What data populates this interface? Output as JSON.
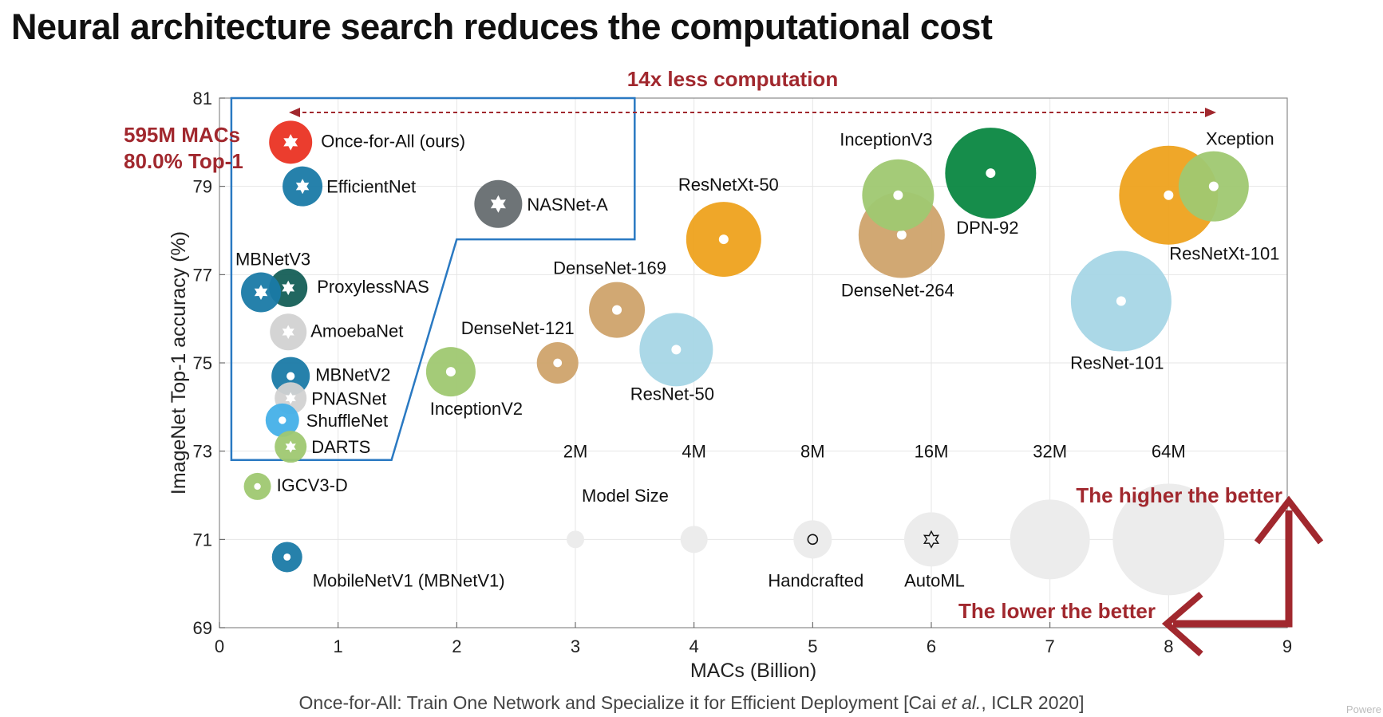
{
  "title": "Neural architecture search reduces the computational cost",
  "caption": {
    "before": "Once-for-All: Train One Network and Specialize it for Efficient Deployment [Cai ",
    "italic": "et al.",
    "after": ", ICLR 2020]"
  },
  "watermark": "Powere",
  "colors": {
    "red": "#a1282e",
    "ofa": "#ea3323",
    "blue": "#1a7aa6",
    "darkgreen": "#155f57",
    "gray": "#666d70",
    "lightgray": "#d2d2d2",
    "skyblue": "#45b0e8",
    "green": "#9fc871",
    "orange": "#eea21d",
    "tan": "#cfa36c",
    "lightblue": "#a7d6e6",
    "dpn": "#0a8741",
    "boxline": "#2a79c2"
  },
  "chart_data": {
    "type": "scatter",
    "xlabel": "MACs (Billion)",
    "ylabel": "ImageNet Top-1 accuracy (%)",
    "xlim": [
      0,
      9
    ],
    "ylim": [
      69,
      81
    ],
    "xticks": [
      0,
      1,
      2,
      3,
      4,
      5,
      6,
      7,
      8,
      9
    ],
    "yticks": [
      69,
      71,
      73,
      75,
      77,
      79,
      81
    ],
    "grid": true,
    "points": [
      {
        "name": "Once-for-All (ours)",
        "x": 0.6,
        "y": 80.0,
        "r": 27,
        "color": "#ea3323",
        "marker": "star",
        "label_dx": 38,
        "label_dy": 6,
        "anchor": "start"
      },
      {
        "name": "EfficientNet",
        "x": 0.7,
        "y": 79.0,
        "r": 25,
        "color": "#1a7aa6",
        "marker": "star",
        "label_dx": 30,
        "label_dy": 8,
        "anchor": "start"
      },
      {
        "name": "NASNet-A",
        "x": 2.35,
        "y": 78.6,
        "r": 30,
        "color": "#666d70",
        "marker": "star",
        "label_dx": 36,
        "label_dy": 8,
        "anchor": "start"
      },
      {
        "name": "ProxylessNAS",
        "x": 0.58,
        "y": 76.7,
        "r": 24,
        "color": "#155f57",
        "marker": "star",
        "label_dx": 36,
        "label_dy": 6,
        "anchor": "start"
      },
      {
        "name": "MBNetV3",
        "x": 0.35,
        "y": 76.6,
        "r": 25,
        "color": "#1a7aa6",
        "marker": "star",
        "label_dx": 15,
        "label_dy": -34,
        "anchor": "middle"
      },
      {
        "name": "AmoebaNet",
        "x": 0.58,
        "y": 75.7,
        "r": 23,
        "color": "#d2d2d2",
        "marker": "star",
        "label_dx": 28,
        "label_dy": 6,
        "anchor": "start"
      },
      {
        "name": "MBNetV2",
        "x": 0.6,
        "y": 74.7,
        "r": 24,
        "color": "#1a7aa6",
        "marker": "dot",
        "label_dx": 31,
        "label_dy": 6,
        "anchor": "start"
      },
      {
        "name": "PNASNet",
        "x": 0.6,
        "y": 74.2,
        "r": 20,
        "color": "#d2d2d2",
        "marker": "star",
        "label_dx": 26,
        "label_dy": 8,
        "anchor": "start"
      },
      {
        "name": "ShuffleNet",
        "x": 0.53,
        "y": 73.7,
        "r": 21,
        "color": "#45b0e8",
        "marker": "dot",
        "label_dx": 30,
        "label_dy": 8,
        "anchor": "start"
      },
      {
        "name": "DARTS",
        "x": 0.6,
        "y": 73.1,
        "r": 20,
        "color": "#9fc871",
        "marker": "star",
        "label_dx": 26,
        "label_dy": 8,
        "anchor": "start"
      },
      {
        "name": "IGCV3-D",
        "x": 0.32,
        "y": 72.2,
        "r": 17,
        "color": "#9fc871",
        "marker": "dot",
        "label_dx": 24,
        "label_dy": 6,
        "anchor": "start"
      },
      {
        "name": "MobileNetV1 (MBNetV1)",
        "x": 0.57,
        "y": 70.6,
        "r": 19,
        "color": "#1a7aa6",
        "marker": "dot",
        "label_dx": 32,
        "label_dy": 37,
        "anchor": "start"
      },
      {
        "name": "InceptionV2",
        "x": 1.95,
        "y": 74.8,
        "r": 31,
        "color": "#9fc871",
        "marker": "dot",
        "label_dx": 32,
        "label_dy": 54,
        "anchor": "middle"
      },
      {
        "name": "DenseNet-121",
        "x": 2.85,
        "y": 75.0,
        "r": 26,
        "color": "#cfa36c",
        "marker": "dot",
        "label_dx": -50,
        "label_dy": -36,
        "anchor": "middle"
      },
      {
        "name": "DenseNet-169",
        "x": 3.35,
        "y": 76.2,
        "r": 35,
        "color": "#cfa36c",
        "marker": "dot",
        "label_dx": -9,
        "label_dy": -45,
        "anchor": "middle"
      },
      {
        "name": "ResNet-50",
        "x": 3.85,
        "y": 75.3,
        "r": 46,
        "color": "#a7d6e6",
        "marker": "dot",
        "label_dx": -5,
        "label_dy": 63,
        "anchor": "middle"
      },
      {
        "name": "ResNetXt-50",
        "x": 4.25,
        "y": 77.8,
        "r": 47,
        "color": "#eea21d",
        "marker": "dot",
        "label_dx": 6,
        "label_dy": -61,
        "anchor": "middle"
      },
      {
        "name": "DenseNet-264",
        "x": 5.75,
        "y": 77.9,
        "r": 54,
        "color": "#cfa36c",
        "marker": "dot",
        "label_dx": -5,
        "label_dy": 77,
        "anchor": "middle"
      },
      {
        "name": "InceptionV3",
        "x": 5.72,
        "y": 78.8,
        "r": 45,
        "color": "#9fc871",
        "marker": "dot",
        "label_dx": -15,
        "label_dy": -62,
        "anchor": "middle"
      },
      {
        "name": "DPN-92",
        "x": 6.5,
        "y": 79.3,
        "r": 57,
        "color": "#0a8741",
        "marker": "dot",
        "label_dx": -4,
        "label_dy": 76,
        "anchor": "middle"
      },
      {
        "name": "ResNet-101",
        "x": 7.6,
        "y": 76.4,
        "r": 63,
        "color": "#a7d6e6",
        "marker": "dot",
        "label_dx": -5,
        "label_dy": 85,
        "anchor": "middle"
      },
      {
        "name": "ResNetXt-101",
        "x": 8.0,
        "y": 78.8,
        "r": 62,
        "color": "#eea21d",
        "marker": "dot",
        "label_dx": 70,
        "label_dy": 81,
        "anchor": "middle"
      },
      {
        "name": "Xception",
        "x": 8.38,
        "y": 79.0,
        "r": 44,
        "color": "#9fc871",
        "marker": "dot",
        "label_dx": 33,
        "label_dy": -52,
        "anchor": "middle"
      }
    ],
    "legend": {
      "title": "Model Size",
      "sizes": [
        {
          "label": "2M",
          "x": 3.0,
          "r": 11
        },
        {
          "label": "4M",
          "x": 4.0,
          "r": 17
        },
        {
          "label": "8M",
          "x": 5.0,
          "r": 24
        },
        {
          "label": "16M",
          "x": 6.0,
          "r": 34
        },
        {
          "label": "32M",
          "x": 7.0,
          "r": 50
        },
        {
          "label": "64M",
          "x": 8.0,
          "r": 70
        }
      ],
      "markers": [
        {
          "label": "Handcrafted",
          "x": 5.0,
          "symbol": "circle"
        },
        {
          "label": "AutoML",
          "x": 6.0,
          "symbol": "star"
        }
      ]
    },
    "annotations": {
      "ofa_macs": "595M MACs",
      "ofa_top1": "80.0% Top-1",
      "less_computation": "14x less computation",
      "higher_better": "The higher the better",
      "lower_better": "The lower the better"
    }
  }
}
